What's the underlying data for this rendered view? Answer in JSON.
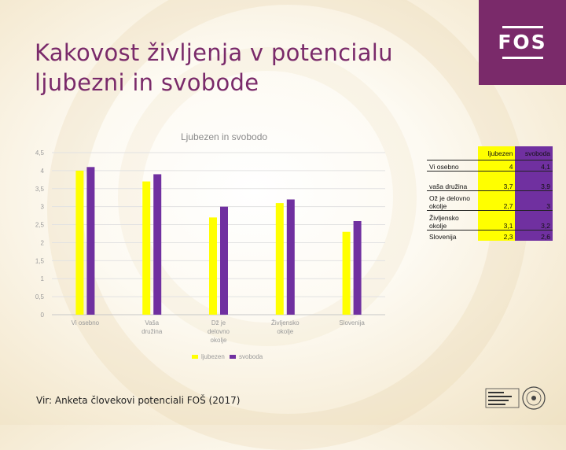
{
  "slide": {
    "title_line1": "Kakovost življenja v potencialu",
    "title_line2": "ljubezni in svobode",
    "source": "Vir: Anketa človekovi potenciali FOŠ (2017)",
    "logo_text": "FOS",
    "accent_color": "#7a2a6a"
  },
  "chart_data": {
    "type": "bar",
    "title": "Ljubezen in svobodo",
    "categories": [
      "Vi osebno",
      "Vaša družina",
      "Dž je delovno okolje",
      "Življensko okolje",
      "Slovenija"
    ],
    "category_lines": [
      [
        "Vi osebno"
      ],
      [
        "Vaša",
        "družina"
      ],
      [
        "Dž je",
        "delovno",
        "okolje"
      ],
      [
        "Življensko",
        "okolje"
      ],
      [
        "Slovenija"
      ]
    ],
    "series": [
      {
        "name": "ljubezen",
        "values": [
          4,
          3.7,
          2.7,
          3.1,
          2.3
        ],
        "color": "#ffff00"
      },
      {
        "name": "svoboda",
        "values": [
          4.1,
          3.9,
          3,
          3.2,
          2.6
        ],
        "color": "#7030a0"
      }
    ],
    "yticks": [
      "0",
      "0,5",
      "1",
      "1,5",
      "2",
      "2,5",
      "3",
      "3,5",
      "4",
      "4,5"
    ],
    "ylim": [
      0,
      4.5
    ],
    "grid": true,
    "legend": "bottom"
  },
  "table": {
    "header": [
      "ljubezen",
      "svoboda"
    ],
    "rows": [
      {
        "label": "Vi osebno",
        "v1": "4",
        "v2": "4,1"
      },
      {
        "label": "vaša družina",
        "v1": "3,7",
        "v2": "3,9"
      },
      {
        "label": "Ož je delovno okolje",
        "v1": "2,7",
        "v2": "3"
      },
      {
        "label": "Življensko okolje",
        "v1": "3,1",
        "v2": "3,2"
      },
      {
        "label": "Slovenija",
        "v1": "2,3",
        "v2": "2,6"
      }
    ]
  }
}
